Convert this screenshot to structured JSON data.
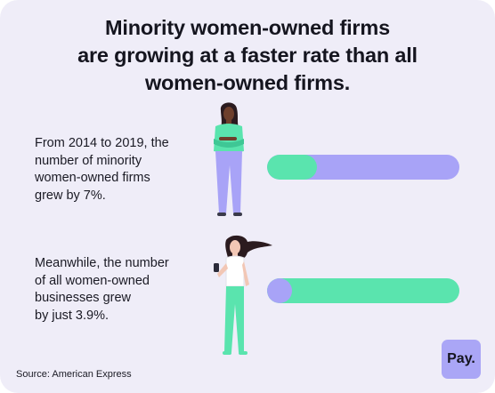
{
  "title_lines": [
    "Minority women-owned firms",
    "are growing at a faster rate than all",
    "women-owned firms."
  ],
  "stats": [
    {
      "lines": [
        "From 2014 to 2019, the",
        "number of minority",
        "women-owned firms",
        "grew by 7%."
      ]
    },
    {
      "lines": [
        "Meanwhile, the number",
        "of all women-owned",
        "businesses grew",
        "by just 3.9%."
      ]
    }
  ],
  "source": "Source: American Express",
  "logo_text": "Pay.",
  "colors": {
    "background": "#efedf8",
    "green": "#5ae4ae",
    "purple": "#a8a3f7",
    "text": "#15151f"
  },
  "icons": [
    "woman-arms-crossed-illustration",
    "woman-with-phone-illustration"
  ],
  "chart_data": {
    "type": "bar",
    "orientation": "horizontal",
    "categories": [
      "Minority women-owned firms",
      "All women-owned businesses"
    ],
    "values": [
      7,
      3.9
    ],
    "unit": "%",
    "period": "2014-2019",
    "bar_fill_fraction": [
      0.26,
      0.13
    ],
    "grid": false,
    "legend": "none"
  }
}
